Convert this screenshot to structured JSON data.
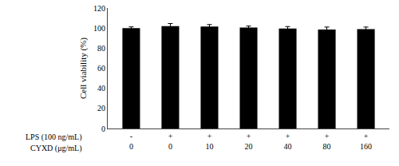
{
  "chart_data": {
    "type": "bar",
    "ylabel": "Cell viability (%)",
    "categories": [
      "0",
      "0",
      "10",
      "20",
      "40",
      "80",
      "160"
    ],
    "values": [
      100.0,
      102.0,
      101.5,
      100.5,
      99.5,
      98.5,
      99.0
    ],
    "errors": [
      1.2,
      2.5,
      2.0,
      1.5,
      2.0,
      2.5,
      2.0
    ],
    "color": "#000000",
    "ylim": [
      0,
      120
    ],
    "yticks": [
      0,
      20,
      40,
      60,
      80,
      100,
      120
    ],
    "grid": false,
    "annotations": [
      {
        "text": "LPS (100 ng/mL)",
        "labels": [
          "-",
          "+",
          "+",
          "+",
          "+",
          "+",
          "+"
        ]
      },
      {
        "text": "CYXD (μg/mL)"
      }
    ]
  }
}
